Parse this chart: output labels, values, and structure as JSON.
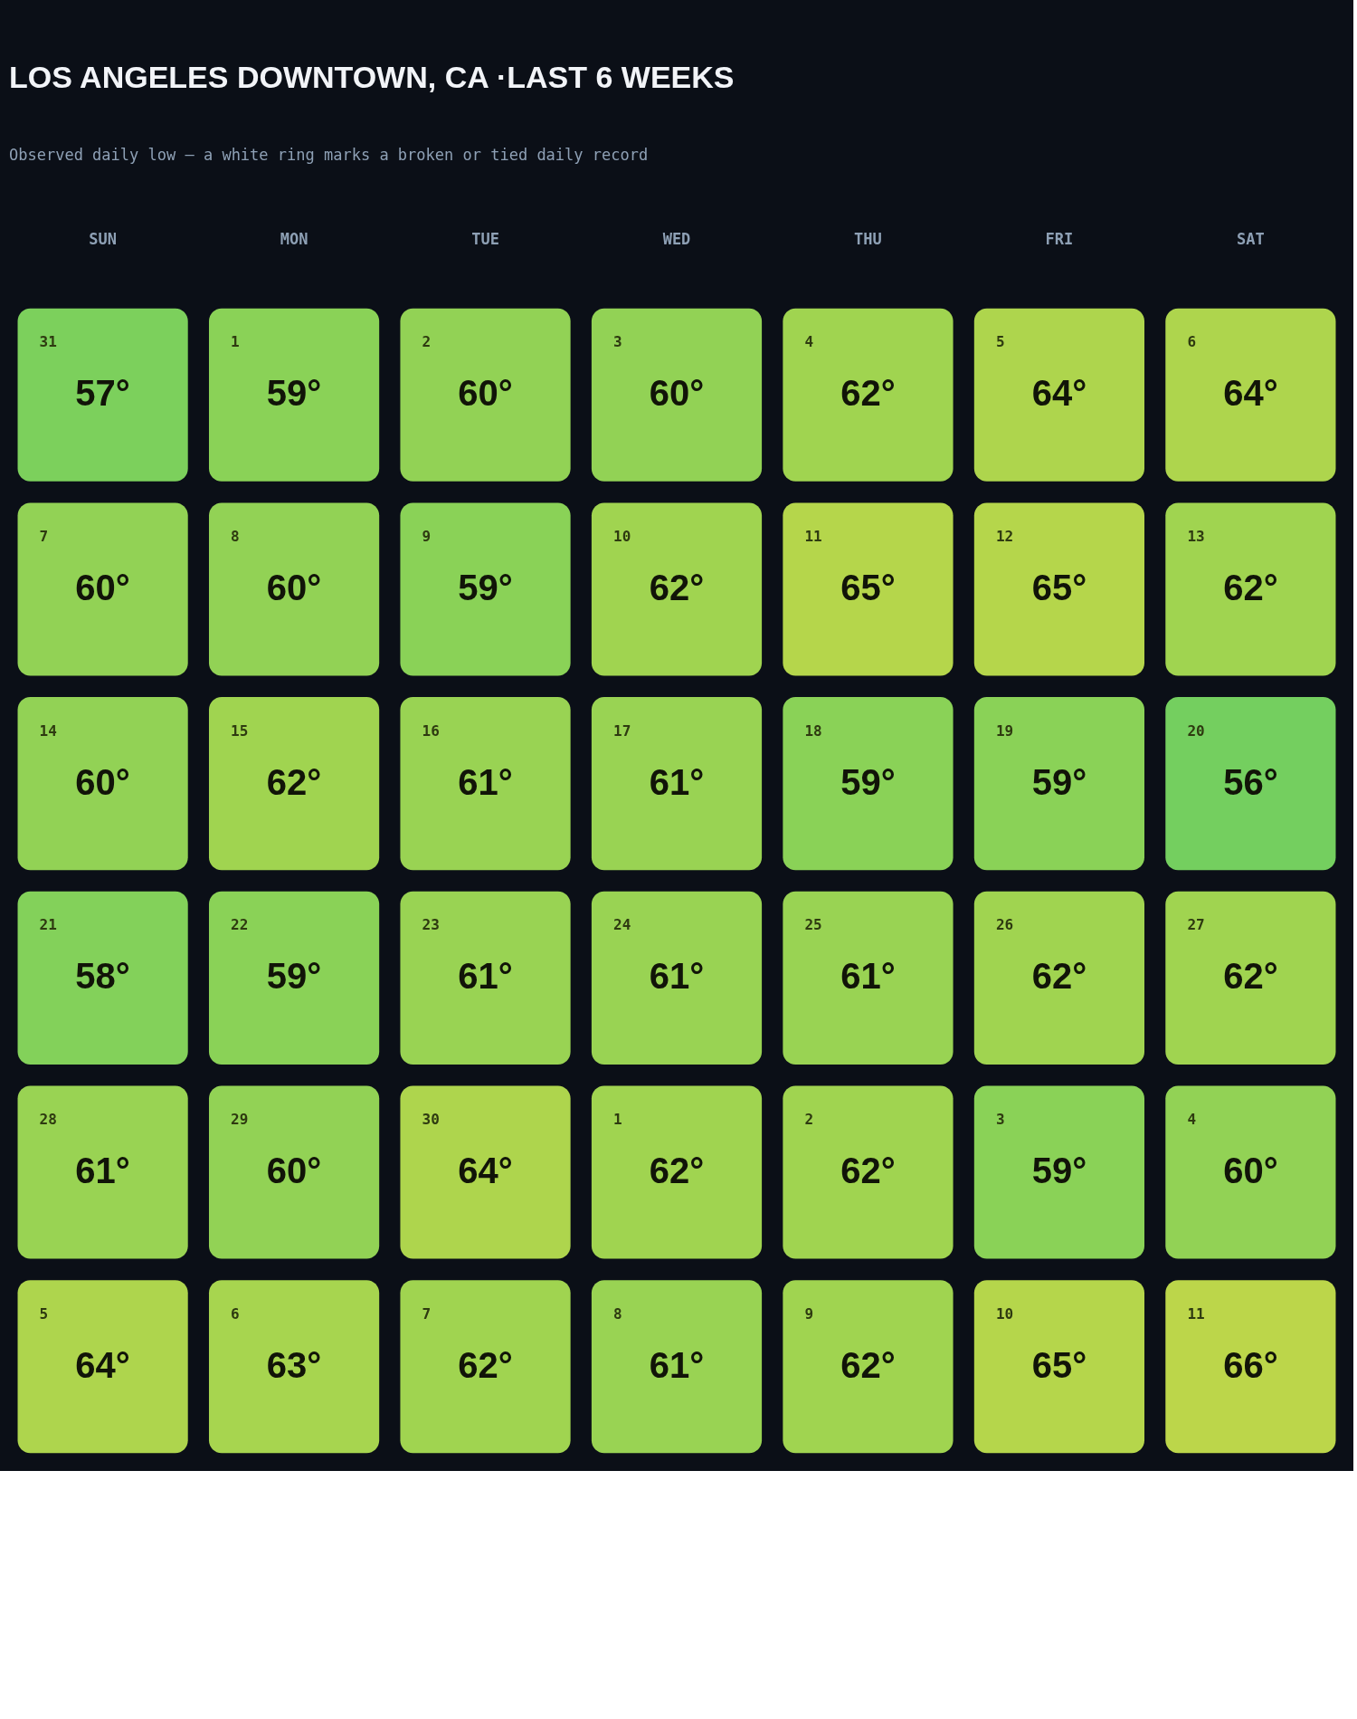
{
  "chart_data": {
    "type": "heatmap",
    "title": "LOS ANGELES DOWNTOWN, CA ·LAST 6 WEEKS",
    "subtitle": "Observed daily low — a white ring marks a broken or tied daily record",
    "categories": [
      "SUN",
      "MON",
      "TUE",
      "WED",
      "THU",
      "FRI",
      "SAT"
    ],
    "y_categories": [
      null,
      null,
      null,
      null,
      null,
      null
    ],
    "cells": [
      [
        57,
        59,
        60,
        60,
        62,
        64,
        64
      ],
      [
        60,
        60,
        59,
        62,
        65,
        65,
        62
      ],
      [
        60,
        62,
        61,
        61,
        59,
        59,
        56
      ],
      [
        58,
        59,
        61,
        61,
        61,
        62,
        62
      ],
      [
        61,
        60,
        64,
        62,
        62,
        59,
        60
      ],
      [
        64,
        63,
        62,
        61,
        62,
        65,
        66
      ]
    ],
    "cell_labels": [
      [
        "57°",
        "59°",
        "60°",
        "60°",
        "62°",
        "64°",
        "64°"
      ],
      [
        "60°",
        "60°",
        "59°",
        "62°",
        "65°",
        "65°",
        "62°"
      ],
      [
        "60°",
        "62°",
        "61°",
        "61°",
        "59°",
        "59°",
        "56°"
      ],
      [
        "58°",
        "59°",
        "61°",
        "61°",
        "61°",
        "62°",
        "62°"
      ],
      [
        "61°",
        "60°",
        "64°",
        "62°",
        "62°",
        "59°",
        "60°"
      ],
      [
        "64°",
        "63°",
        "62°",
        "61°",
        "62°",
        "65°",
        "66°"
      ]
    ],
    "annotations": [
      "31",
      "1",
      "2",
      "3",
      "4",
      "5",
      "6",
      "7",
      "8",
      "9",
      "10",
      "11",
      "12",
      "13",
      "14",
      "15",
      "16",
      "17",
      "18",
      "19",
      "20",
      "21",
      "22",
      "23",
      "24",
      "25",
      "26",
      "27",
      "28",
      "29",
      "30",
      "1",
      "2",
      "3",
      "4",
      "5",
      "6",
      "7",
      "8",
      "9",
      "10",
      "11"
    ]
  }
}
